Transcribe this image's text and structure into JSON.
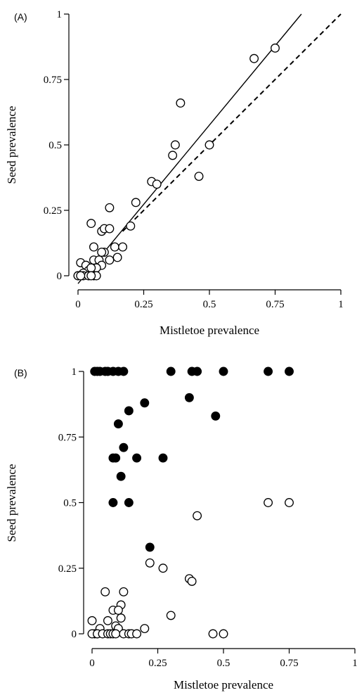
{
  "chart_data": [
    {
      "type": "scatter",
      "panel_label": "(A)",
      "xlabel": "Mistletoe prevalence",
      "ylabel": "Seed prevalence",
      "xlim": [
        0,
        1
      ],
      "ylim": [
        0,
        1
      ],
      "x_ticks": [
        0,
        0.25,
        0.5,
        0.75,
        1
      ],
      "x_tick_labels": [
        "0",
        "0.25",
        "0.5",
        "0.75",
        "1"
      ],
      "y_ticks": [
        0,
        0.25,
        0.5,
        0.75,
        1
      ],
      "y_tick_labels": [
        "0",
        "0.25",
        "0.5",
        "0.75",
        "1"
      ],
      "grid": false,
      "series": [
        {
          "marker": "open-circle",
          "points": [
            [
              0.75,
              0.87
            ],
            [
              0.67,
              0.83
            ],
            [
              0.39,
              0.66
            ],
            [
              0.37,
              0.5
            ],
            [
              0.5,
              0.5
            ],
            [
              0.36,
              0.46
            ],
            [
              0.46,
              0.38
            ],
            [
              0.28,
              0.36
            ],
            [
              0.3,
              0.35
            ],
            [
              0.22,
              0.28
            ],
            [
              0.12,
              0.26
            ],
            [
              0.05,
              0.2
            ],
            [
              0.2,
              0.19
            ],
            [
              0.09,
              0.17
            ],
            [
              0.1,
              0.18
            ],
            [
              0.12,
              0.18
            ],
            [
              0.06,
              0.11
            ],
            [
              0.14,
              0.11
            ],
            [
              0.17,
              0.11
            ],
            [
              0.1,
              0.09
            ],
            [
              0.09,
              0.09
            ],
            [
              0.15,
              0.07
            ],
            [
              0.12,
              0.06
            ],
            [
              0.06,
              0.06
            ],
            [
              0.08,
              0.06
            ],
            [
              0.01,
              0.05
            ],
            [
              0.03,
              0.04
            ],
            [
              0.09,
              0.04
            ],
            [
              0.07,
              0.03
            ],
            [
              0.04,
              0.02
            ],
            [
              0.05,
              0.03
            ],
            [
              0.02,
              0.01
            ],
            [
              0.0,
              0.0
            ],
            [
              0.02,
              0.0
            ],
            [
              0.04,
              0.0
            ],
            [
              0.06,
              0.0
            ],
            [
              0.07,
              0.0
            ],
            [
              0.05,
              0.0
            ],
            [
              0.0,
              0.0
            ],
            [
              0.01,
              0.0
            ]
          ]
        }
      ],
      "lines": [
        {
          "style": "solid",
          "points": [
            [
              0.0,
              -0.03
            ],
            [
              0.85,
              1.0
            ]
          ]
        },
        {
          "style": "dashed",
          "points": [
            [
              0.17,
              0.17
            ],
            [
              1.0,
              1.0
            ]
          ]
        }
      ]
    },
    {
      "type": "scatter",
      "panel_label": "(B)",
      "xlabel": "Mistletoe prevalence",
      "ylabel": "Seed prevalence",
      "xlim": [
        0,
        1
      ],
      "ylim": [
        0,
        1
      ],
      "x_ticks": [
        0,
        0.25,
        0.5,
        0.75,
        1
      ],
      "x_tick_labels": [
        "0",
        "0.25",
        "0.5",
        "0.75",
        "1"
      ],
      "y_ticks": [
        0,
        0.25,
        0.5,
        0.75,
        1
      ],
      "y_tick_labels": [
        "0",
        "0.25",
        "0.5",
        "0.75",
        "1"
      ],
      "grid": false,
      "series": [
        {
          "marker": "filled-circle",
          "points": [
            [
              0.01,
              1
            ],
            [
              0.02,
              1
            ],
            [
              0.03,
              1
            ],
            [
              0.05,
              1
            ],
            [
              0.06,
              1
            ],
            [
              0.08,
              1
            ],
            [
              0.1,
              1
            ],
            [
              0.12,
              1
            ],
            [
              0.3,
              1
            ],
            [
              0.38,
              1
            ],
            [
              0.4,
              1
            ],
            [
              0.5,
              1
            ],
            [
              0.67,
              1
            ],
            [
              0.75,
              1
            ],
            [
              0.37,
              0.9
            ],
            [
              0.2,
              0.88
            ],
            [
              0.14,
              0.85
            ],
            [
              0.47,
              0.83
            ],
            [
              0.1,
              0.8
            ],
            [
              0.12,
              0.71
            ],
            [
              0.08,
              0.67
            ],
            [
              0.09,
              0.67
            ],
            [
              0.17,
              0.67
            ],
            [
              0.27,
              0.67
            ],
            [
              0.11,
              0.6
            ],
            [
              0.08,
              0.5
            ],
            [
              0.14,
              0.5
            ],
            [
              0.22,
              0.33
            ],
            [
              0.01,
              0.0
            ],
            [
              0.02,
              0.0
            ]
          ]
        },
        {
          "marker": "open-circle",
          "points": [
            [
              0.67,
              0.5
            ],
            [
              0.75,
              0.5
            ],
            [
              0.4,
              0.45
            ],
            [
              0.22,
              0.27
            ],
            [
              0.27,
              0.25
            ],
            [
              0.37,
              0.21
            ],
            [
              0.38,
              0.2
            ],
            [
              0.05,
              0.16
            ],
            [
              0.12,
              0.16
            ],
            [
              0.11,
              0.11
            ],
            [
              0.08,
              0.09
            ],
            [
              0.1,
              0.09
            ],
            [
              0.3,
              0.07
            ],
            [
              0.0,
              0.05
            ],
            [
              0.06,
              0.05
            ],
            [
              0.11,
              0.06
            ],
            [
              0.09,
              0.03
            ],
            [
              0.2,
              0.02
            ],
            [
              0.03,
              0.02
            ],
            [
              0.1,
              0.02
            ],
            [
              0.0,
              0.0
            ],
            [
              0.02,
              0.0
            ],
            [
              0.04,
              0.0
            ],
            [
              0.06,
              0.0
            ],
            [
              0.07,
              0.0
            ],
            [
              0.08,
              0.0
            ],
            [
              0.09,
              0.0
            ],
            [
              0.12,
              0.0
            ],
            [
              0.14,
              0.0
            ],
            [
              0.15,
              0.0
            ],
            [
              0.17,
              0.0
            ],
            [
              0.46,
              0.0
            ],
            [
              0.5,
              0.0
            ]
          ]
        }
      ]
    }
  ]
}
